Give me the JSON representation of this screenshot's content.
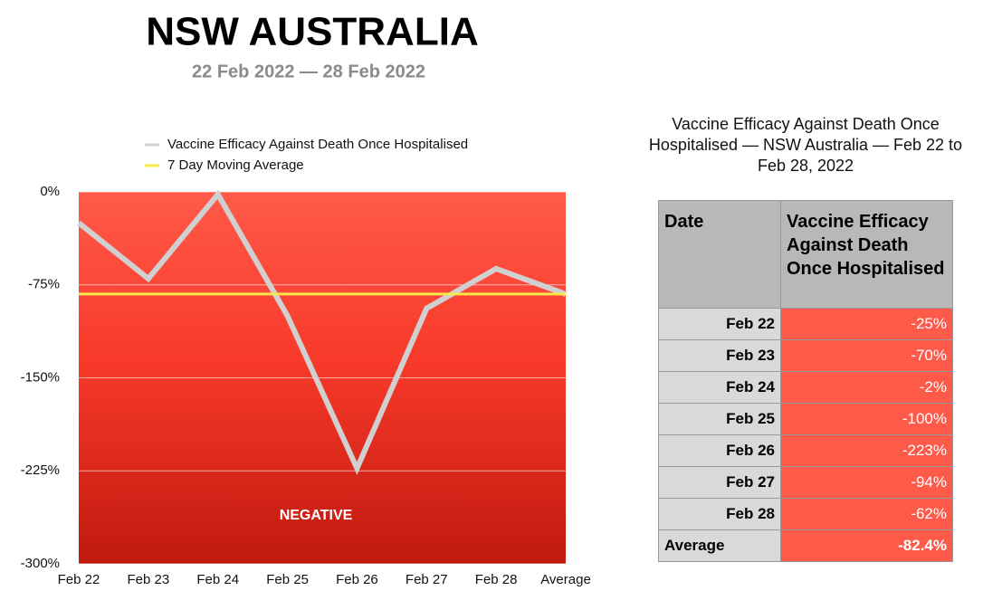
{
  "chart_data": {
    "type": "line",
    "title": "NSW AUSTRALIA",
    "subtitle": "22 Feb 2022 — 28 Feb 2022",
    "categories": [
      "Feb 22",
      "Feb 23",
      "Feb 24",
      "Feb 25",
      "Feb 26",
      "Feb 27",
      "Feb 28",
      "Average"
    ],
    "series": [
      {
        "name": "Vaccine Efficacy Against Death Once Hospitalised",
        "color": "#d0d0d0",
        "values": [
          -25,
          -70,
          -2,
          -100,
          -223,
          -94,
          -62,
          -82.4
        ]
      },
      {
        "name": "7 Day Moving Average",
        "color": "#f5e84a",
        "values": [
          -82.4,
          -82.4,
          -82.4,
          -82.4,
          -82.4,
          -82.4,
          -82.4,
          -82.4
        ]
      }
    ],
    "ylim": [
      -300,
      0
    ],
    "yticks": [
      {
        "value": 0,
        "label": "0%"
      },
      {
        "value": -75,
        "label": "-75%"
      },
      {
        "value": -150,
        "label": "-150%"
      },
      {
        "value": -225,
        "label": "-225%"
      },
      {
        "value": -300,
        "label": "-300%"
      }
    ],
    "grid": true,
    "annotation": "NEGATIVE"
  },
  "table": {
    "title": "Vaccine Efficacy Against Death Once Hospitalised — NSW Australia — Feb 22 to Feb 28, 2022",
    "header": [
      "Date",
      "Vaccine Efficacy Against Death Once Hospitalised"
    ],
    "rows": [
      [
        "Feb 22",
        "-25%"
      ],
      [
        "Feb 23",
        "-70%"
      ],
      [
        "Feb 24",
        "-2%"
      ],
      [
        "Feb 25",
        "-100%"
      ],
      [
        "Feb 26",
        "-223%"
      ],
      [
        "Feb 27",
        "-94%"
      ],
      [
        "Feb 28",
        "-62%"
      ],
      [
        "Average",
        "-82.4%"
      ]
    ]
  }
}
